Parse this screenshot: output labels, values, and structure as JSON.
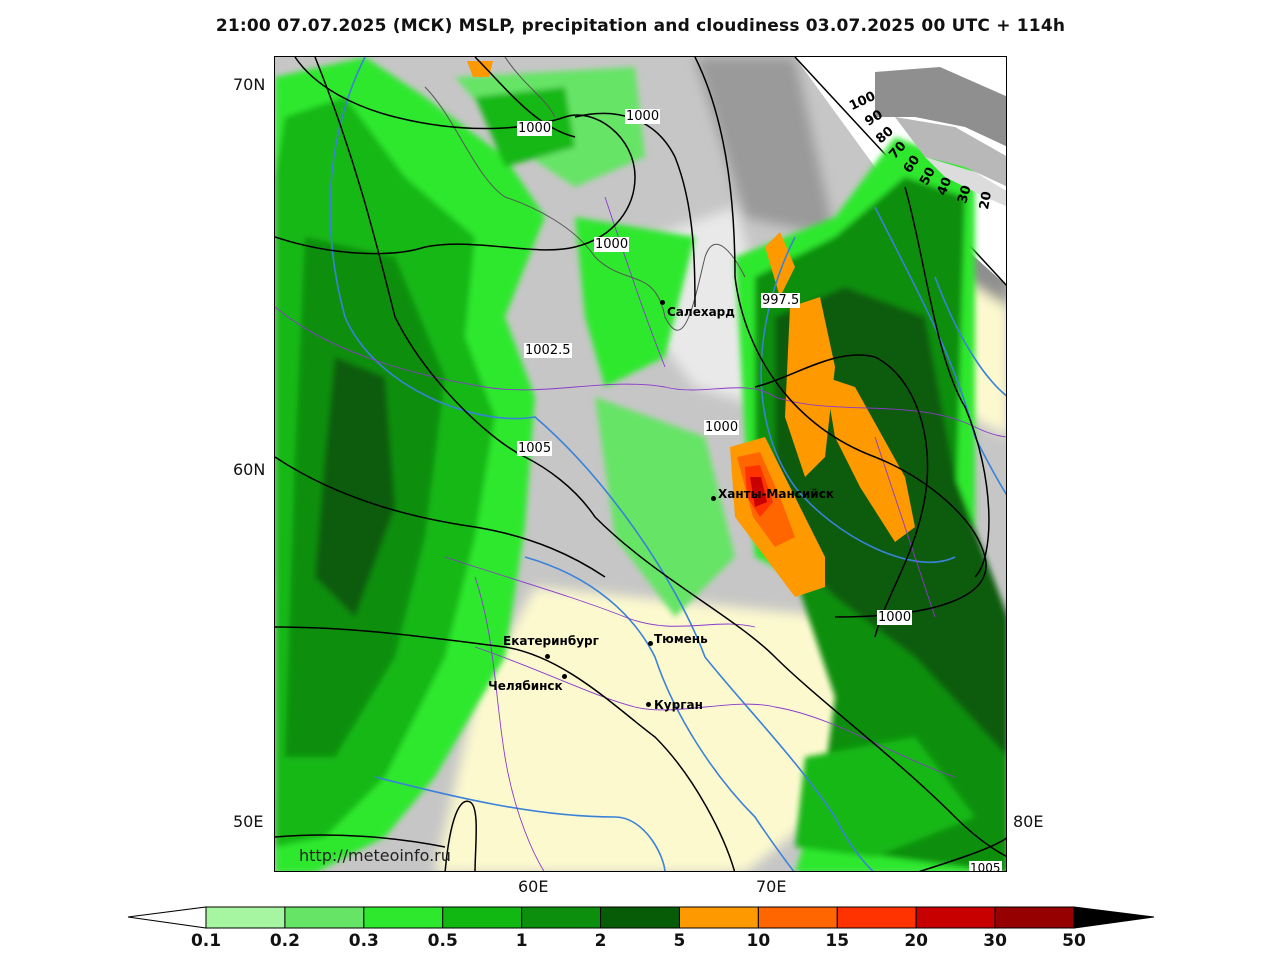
{
  "title": "21:00 07.07.2025 (МСК) MSLP, precipitation and cloudiness 03.07.2025 00 UTC + 114h",
  "lat_labels": [
    "70N",
    "60N",
    "50E"
  ],
  "lon_labels": [
    "60E",
    "70E",
    "80E"
  ],
  "watermark": "http://meteoinfo.ru",
  "isobars": [
    "1000",
    "1000",
    "1000",
    "997.5",
    "1002.5",
    "1005",
    "1000",
    "1000",
    "1005"
  ],
  "cities": [
    {
      "name": "Салехард"
    },
    {
      "name": "Ханты-Мансийск"
    },
    {
      "name": "Екатеринбург"
    },
    {
      "name": "Тюмень"
    },
    {
      "name": "Челябинск"
    },
    {
      "name": "Курган"
    }
  ],
  "cloud_scale": [
    "100",
    "90",
    "80",
    "70",
    "60",
    "50",
    "40",
    "30",
    "20"
  ],
  "colorbar": {
    "labels": [
      "0.1",
      "0.2",
      "0.3",
      "0.5",
      "1",
      "2",
      "5",
      "10",
      "15",
      "20",
      "30",
      "50"
    ],
    "colors": [
      "#a6f5a0",
      "#66e466",
      "#2ee82e",
      "#12b812",
      "#0c8f0c",
      "#075c07",
      "#ff9900",
      "#ff6600",
      "#ff3300",
      "#c80000",
      "#960000"
    ]
  }
}
